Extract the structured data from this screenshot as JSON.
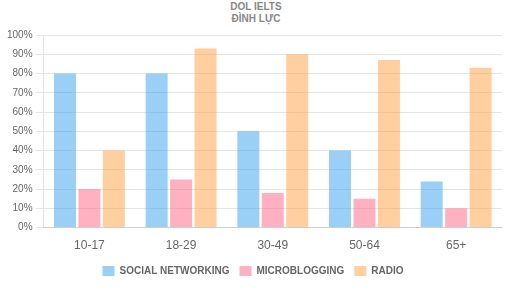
{
  "chart_data": {
    "type": "bar",
    "categories": [
      "10-17",
      "18-29",
      "30-49",
      "50-64",
      "65+"
    ],
    "series": [
      {
        "name": "SOCIAL NETWORKING",
        "values": [
          80,
          80,
          50,
          40,
          24
        ]
      },
      {
        "name": "MICROBLOGGING",
        "values": [
          20,
          25,
          18,
          15,
          10
        ]
      },
      {
        "name": "RADIO",
        "values": [
          40,
          93,
          90,
          87,
          83
        ]
      }
    ],
    "ylim": [
      0,
      100
    ],
    "yticks": [
      {
        "value": 0,
        "label": "0%"
      },
      {
        "value": 10,
        "label": "10%"
      },
      {
        "value": 20,
        "label": "20%"
      },
      {
        "value": 30,
        "label": "30%"
      },
      {
        "value": 40,
        "label": "40%"
      },
      {
        "value": 50,
        "label": "50%"
      },
      {
        "value": 60,
        "label": "60%"
      },
      {
        "value": 70,
        "label": "70%"
      },
      {
        "value": 80,
        "label": "80%"
      },
      {
        "value": 90,
        "label": "90%"
      },
      {
        "value": 100,
        "label": "100%"
      }
    ],
    "grid": true,
    "legend": "bottom",
    "annotations": [
      "DOL IELTS",
      "ĐÌNH LỰC"
    ]
  }
}
